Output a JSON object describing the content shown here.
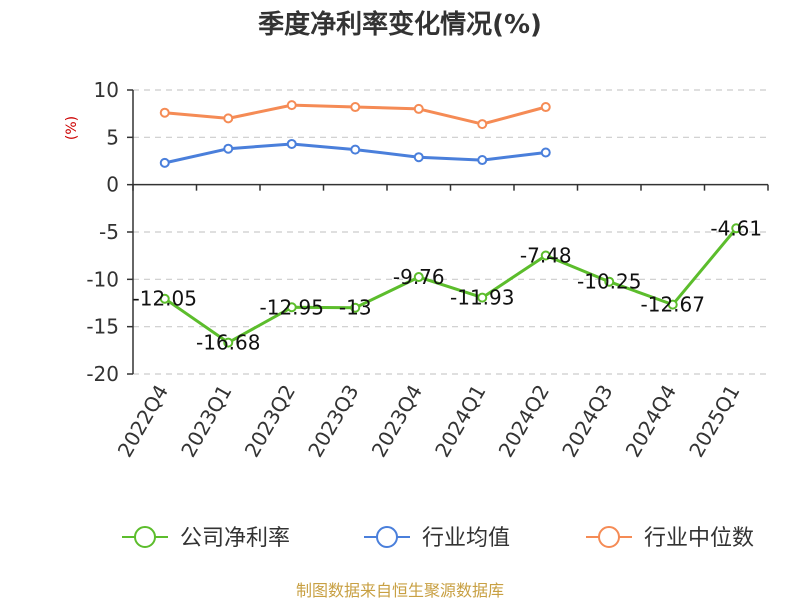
{
  "chart_data": {
    "type": "line",
    "title": "季度净利率变化情况(%)",
    "ylabel": "(%)",
    "xlabel": "",
    "categories": [
      "2022Q4",
      "2023Q1",
      "2023Q2",
      "2023Q3",
      "2023Q4",
      "2024Q1",
      "2024Q2",
      "2024Q3",
      "2024Q4",
      "2025Q1"
    ],
    "ylim": [
      -20,
      10
    ],
    "yticks": [
      10,
      5,
      0,
      -5,
      -10,
      -15,
      -20
    ],
    "grid": true,
    "legend_position": "bottom",
    "series": [
      {
        "name": "公司净利率",
        "color": "#5cbd2c",
        "values": [
          -12.05,
          -16.68,
          -12.95,
          -13,
          -9.76,
          -11.93,
          -7.48,
          -10.25,
          -12.67,
          -4.61
        ],
        "labels": [
          "-12.05",
          "-16.68",
          "-12.95",
          "-13",
          "-9.76",
          "-11.93",
          "-7.48",
          "-10.25",
          "-12.67",
          "-4.61"
        ]
      },
      {
        "name": "行业均值",
        "color": "#4a7fdb",
        "values": [
          2.3,
          3.8,
          4.3,
          3.7,
          2.9,
          2.6,
          3.4,
          null,
          null,
          null
        ]
      },
      {
        "name": "行业中位数",
        "color": "#f58b55",
        "values": [
          7.6,
          7.0,
          8.4,
          8.2,
          8.0,
          6.4,
          8.2,
          null,
          null,
          null
        ]
      }
    ],
    "source": "制图数据来自恒生聚源数据库"
  }
}
